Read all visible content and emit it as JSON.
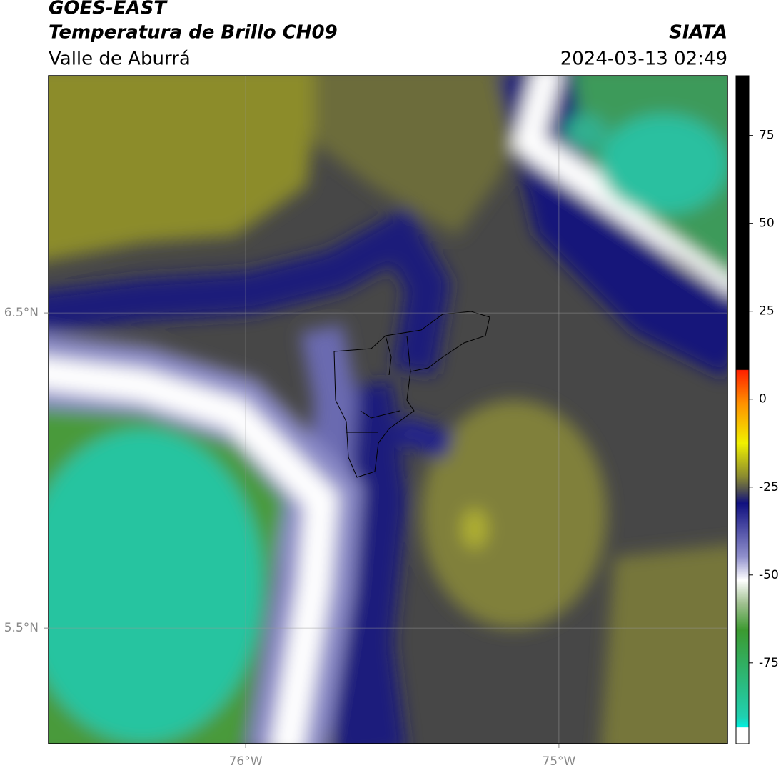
{
  "header": {
    "title": "GOES-EAST",
    "subtitle": "Temperatura de Brillo CH09",
    "region": "Valle de Aburrá",
    "source": "SIATA",
    "datetime": "2024-03-13 02:49"
  },
  "chart_data": {
    "type": "map",
    "xlim": [
      -76.629,
      -74.462
    ],
    "ylim": [
      5.133,
      7.253
    ],
    "xticks": [
      {
        "value": -76,
        "label": "76°W"
      },
      {
        "value": -75,
        "label": "75°W"
      }
    ],
    "yticks": [
      {
        "value": 6.5,
        "label": "6.5°N"
      },
      {
        "value": 5.5,
        "label": "5.5°N"
      }
    ],
    "grid": true,
    "colorbar": {
      "lim": [
        -98,
        92
      ],
      "ticks": [
        75,
        50,
        25,
        0,
        -25,
        -50,
        -75
      ]
    }
  }
}
